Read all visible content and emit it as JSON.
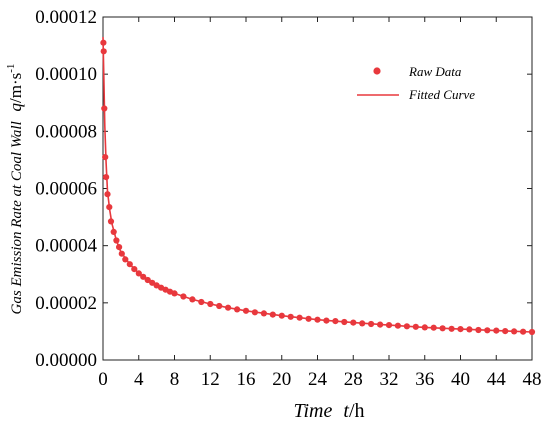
{
  "chart_data": {
    "type": "scatter",
    "x_axis": {
      "label": "Time",
      "symbol": "t",
      "unit": "/h",
      "min": 0,
      "max": 48,
      "ticks": [
        "0",
        "4",
        "8",
        "12",
        "16",
        "20",
        "24",
        "28",
        "32",
        "36",
        "40",
        "44",
        "48"
      ]
    },
    "y_axis": {
      "label": "Gas Emission Rate at Coal Wall",
      "symbol": "q",
      "unit_base": "/m·s",
      "unit_exp": "-1",
      "min": 0,
      "max": 0.00012,
      "ticks": [
        "0.00000",
        "0.00002",
        "0.00004",
        "0.00006",
        "0.00008",
        "0.00010",
        "0.00012"
      ]
    },
    "legend": {
      "position": "top-right",
      "raw_label": "Raw Data",
      "fit_label": "Fitted Curve"
    },
    "series": [
      {
        "name": "Raw Data",
        "kind": "points",
        "color": "#e8383d",
        "x": [
          0.04,
          0.08,
          0.15,
          0.25,
          0.35,
          0.5,
          0.7,
          0.9,
          1.2,
          1.5,
          1.8,
          2.1,
          2.5,
          3,
          3.5,
          4,
          4.5,
          5,
          5.5,
          6,
          6.5,
          7,
          7.5,
          8,
          9,
          10,
          11,
          12,
          13,
          14,
          15,
          16,
          17,
          18,
          19,
          20,
          21,
          22,
          23,
          24,
          25,
          26,
          27,
          28,
          29,
          30,
          31,
          32,
          33,
          34,
          35,
          36,
          37,
          38,
          39,
          40,
          41,
          42,
          43,
          44,
          45,
          46,
          47,
          48
        ],
        "y": [
          0.000111,
          0.000108,
          8.8e-05,
          7.1e-05,
          6.4e-05,
          5.8e-05,
          5.35e-05,
          4.85e-05,
          4.48e-05,
          4.18e-05,
          3.95e-05,
          3.72e-05,
          3.52e-05,
          3.35e-05,
          3.18e-05,
          3.03e-05,
          2.91e-05,
          2.8e-05,
          2.7e-05,
          2.61e-05,
          2.53e-05,
          2.46e-05,
          2.39e-05,
          2.33e-05,
          2.22e-05,
          2.12e-05,
          2.03e-05,
          1.96e-05,
          1.89e-05,
          1.83e-05,
          1.77e-05,
          1.72e-05,
          1.67e-05,
          1.63e-05,
          1.59e-05,
          1.55e-05,
          1.51e-05,
          1.48e-05,
          1.44e-05,
          1.41e-05,
          1.38e-05,
          1.36e-05,
          1.33e-05,
          1.31e-05,
          1.28e-05,
          1.26e-05,
          1.24e-05,
          1.22e-05,
          1.2e-05,
          1.18e-05,
          1.16e-05,
          1.14e-05,
          1.13e-05,
          1.11e-05,
          1.09e-05,
          1.08e-05,
          1.07e-05,
          1.05e-05,
          1.04e-05,
          1.03e-05,
          1.01e-05,
          1e-05,
          9.9e-06,
          9.8e-06
        ]
      },
      {
        "name": "Fitted Curve",
        "kind": "line",
        "color": "#e8383d",
        "x": [
          0,
          0.1,
          0.2,
          0.35,
          0.5,
          0.75,
          1,
          1.5,
          2,
          3,
          4,
          5,
          6,
          8,
          10,
          12,
          14,
          16,
          20,
          24,
          28,
          32,
          36,
          40,
          44,
          48
        ],
        "y": [
          0.000113,
          9.8e-05,
          8.2e-05,
          6.9e-05,
          5.9e-05,
          5.25e-05,
          4.78e-05,
          4.18e-05,
          3.78e-05,
          3.35e-05,
          3.03e-05,
          2.8e-05,
          2.61e-05,
          2.33e-05,
          2.12e-05,
          1.96e-05,
          1.83e-05,
          1.72e-05,
          1.55e-05,
          1.41e-05,
          1.31e-05,
          1.22e-05,
          1.14e-05,
          1.08e-05,
          1.03e-05,
          9.8e-06
        ]
      }
    ]
  }
}
